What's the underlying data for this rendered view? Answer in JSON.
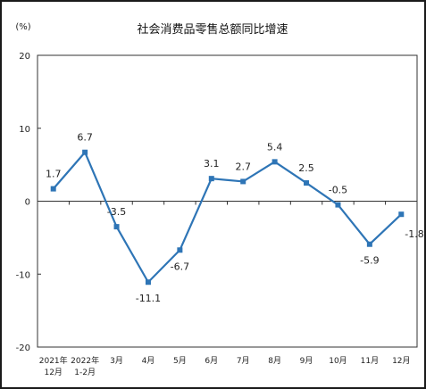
{
  "chart_data": {
    "type": "line",
    "title": "社会消费品零售总额同比增速",
    "unit_label": "(%)",
    "categories": [
      [
        "2021年",
        "12月"
      ],
      [
        "2022年",
        "1-2月"
      ],
      [
        "3月"
      ],
      [
        "4月"
      ],
      [
        "5月"
      ],
      [
        "6月"
      ],
      [
        "7月"
      ],
      [
        "8月"
      ],
      [
        "9月"
      ],
      [
        "10月"
      ],
      [
        "11月"
      ],
      [
        "12月"
      ]
    ],
    "values": [
      1.7,
      6.7,
      -3.5,
      -11.1,
      -6.7,
      3.1,
      2.7,
      5.4,
      2.5,
      -0.5,
      -5.9,
      -1.8
    ],
    "value_labels": [
      "1.7",
      "6.7",
      "-3.5",
      "-11.1",
      "-6.7",
      "3.1",
      "2.7",
      "5.4",
      "2.5",
      "-0.5",
      "-5.9",
      "-1.8"
    ],
    "label_position": [
      "above",
      "above",
      "above",
      "below",
      "below",
      "above",
      "above",
      "above",
      "above",
      "above",
      "below",
      "right"
    ],
    "ylim": [
      -20,
      20
    ],
    "yticks": [
      20,
      10,
      0,
      -10,
      -20
    ],
    "ytick_labels": [
      "20",
      "10",
      "0",
      "-10",
      "-20"
    ],
    "grid": false,
    "color": "#2e75b6"
  }
}
